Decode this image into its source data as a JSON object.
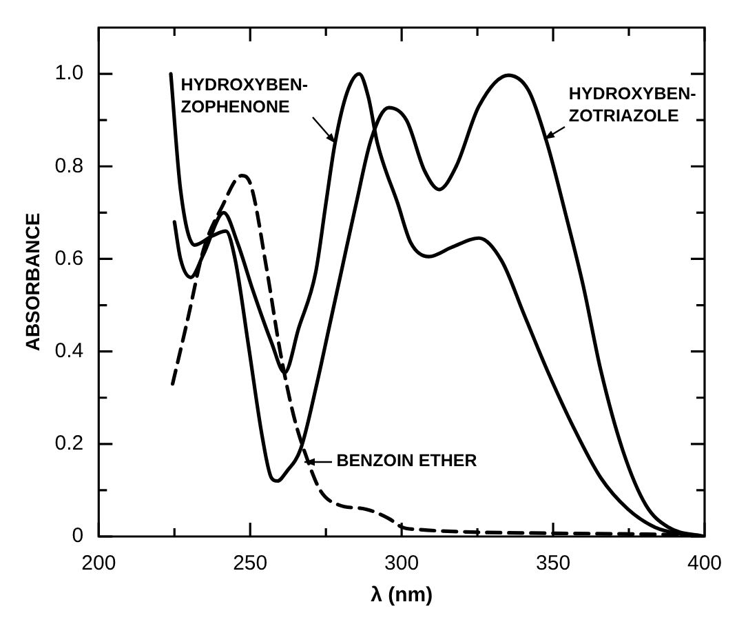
{
  "chart_data": {
    "type": "line",
    "xlabel": "λ (nm)",
    "ylabel": "ABSORBANCE",
    "xlim": [
      200,
      400
    ],
    "ylim": [
      0,
      1.1
    ],
    "xticks": [
      200,
      {
        "value": 225,
        "label": null
      },
      250,
      {
        "value": 275,
        "label": null
      },
      300,
      {
        "value": 325,
        "label": null
      },
      350,
      {
        "value": 375,
        "label": null
      },
      400
    ],
    "yticks": [
      0,
      {
        "value": 0.1,
        "label": null
      },
      0.2,
      {
        "value": 0.3,
        "label": null
      },
      0.4,
      {
        "value": 0.5,
        "label": null
      },
      0.6,
      {
        "value": 0.7,
        "label": null
      },
      0.8,
      {
        "value": 0.9,
        "label": null
      },
      {
        "value": 1,
        "label": "1.0"
      }
    ],
    "grid": false,
    "legend": false,
    "marker": "none",
    "series": [
      {
        "color": "#000000",
        "line_style": "solid",
        "x": [
          225,
          227,
          230.4,
          234.6,
          241.3,
          245.8,
          251,
          257,
          261.4,
          266,
          271.6,
          275,
          278,
          282,
          286,
          289,
          292,
          298.7,
          303,
          309,
          316.5,
          325.5,
          333,
          340.4,
          348,
          356.8,
          365.7,
          374.7,
          383.6,
          392.6,
          400
        ],
        "values": [
          0.68,
          0.6,
          0.56,
          0.61,
          0.7,
          0.635,
          0.53,
          0.42,
          0.354,
          0.45,
          0.57,
          0.72,
          0.85,
          0.96,
          1.0,
          0.95,
          0.85,
          0.72,
          0.635,
          0.605,
          0.625,
          0.645,
          0.596,
          0.48,
          0.36,
          0.235,
          0.127,
          0.059,
          0.02,
          0.005,
          0
        ]
      },
      {
        "color": "#000000",
        "line_style": "solid",
        "x": [
          223.8,
          227,
          231.6,
          237.6,
          242,
          245,
          249.5,
          254,
          257,
          259,
          262,
          266.7,
          272,
          276,
          280,
          285,
          290,
          295.7,
          301.6,
          307.6,
          312.4,
          318,
          325.5,
          335.2,
          342,
          348,
          354,
          360,
          365.7,
          373,
          380.6,
          388,
          400
        ],
        "values": [
          1.0,
          0.75,
          0.63,
          0.65,
          0.66,
          0.6,
          0.41,
          0.215,
          0.127,
          0.12,
          0.14,
          0.19,
          0.33,
          0.45,
          0.57,
          0.72,
          0.86,
          0.927,
          0.9,
          0.79,
          0.75,
          0.8,
          0.93,
          0.997,
          0.963,
          0.85,
          0.7,
          0.54,
          0.36,
          0.186,
          0.068,
          0.02,
          0
        ]
      },
      {
        "color": "#000000",
        "line_style": "dashed",
        "x": [
          224.4,
          229.4,
          234.6,
          240.5,
          247.2,
          250.2,
          255.4,
          259.9,
          264.4,
          268.9,
          273.3,
          279.3,
          288.2,
          295.7,
          300.2,
          306,
          321,
          351,
          380.6,
          400
        ],
        "values": [
          0.33,
          0.47,
          0.62,
          0.71,
          0.78,
          0.76,
          0.58,
          0.4,
          0.26,
          0.166,
          0.098,
          0.068,
          0.059,
          0.039,
          0.02,
          0.015,
          0.01,
          0.007,
          0.005,
          0.002
        ]
      }
    ],
    "annotations": [
      {
        "text": "HYDROXYBEN-\nZOPHENONE",
        "x": 278,
        "y": 0.85
      },
      {
        "text": "HYDROXYBEN-\nZOTRIAZOLE",
        "x": 347,
        "y": 0.86
      },
      {
        "text": "BENZOIN ETHER",
        "x": 268,
        "y": 0.16
      }
    ]
  }
}
